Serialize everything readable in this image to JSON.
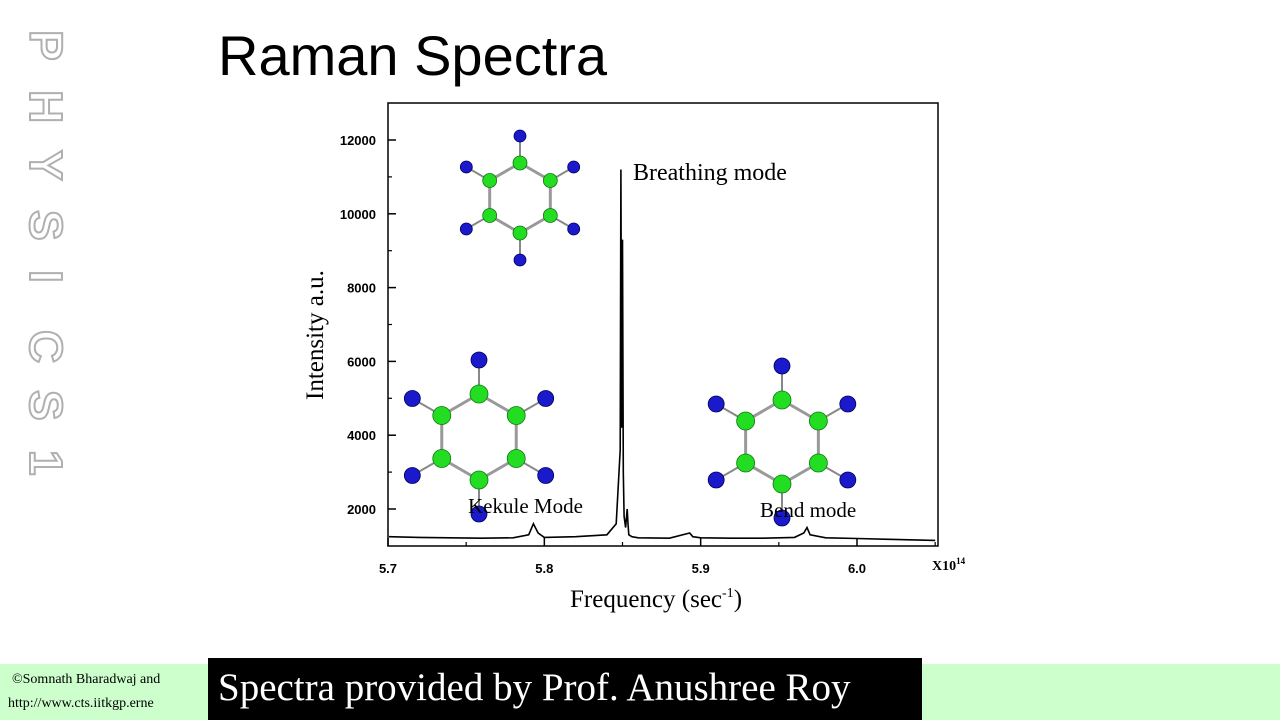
{
  "slide": {
    "title": "Raman Spectra",
    "watermark_letters": [
      "P",
      "H",
      "Y",
      "S",
      "I",
      "C",
      "S",
      "1"
    ],
    "footer_line1": "©Somnath Bharadwaj and",
    "footer_line2": "http://www.cts.iitkgp.erne",
    "caption": "Spectra provided by Prof. Anushree Roy"
  },
  "colors": {
    "footer_bg": "#ccffcc",
    "caption_bg": "#000000",
    "caption_text": "#ffffff",
    "carbon_atom": "#22dd22",
    "hydrogen_atom": "#1a1acc",
    "spectrum_line": "#000000"
  },
  "chart_data": {
    "type": "line",
    "title": "",
    "xlabel": "Frequency (sec",
    "xlabel_sup": "-1",
    "xlabel_tail": ")",
    "ylabel": "Intensity a.u.",
    "x_multiplier": "X10",
    "x_multiplier_sup": "14",
    "xlim": [
      5.7,
      6.05
    ],
    "ylim": [
      1000,
      12800
    ],
    "xticks": [
      "5.7",
      "5.8",
      "5.9",
      "6.0"
    ],
    "yticks": [
      "2000",
      "4000",
      "6000",
      "8000",
      "10000",
      "12000"
    ],
    "grid": false,
    "series": [
      {
        "x": [
          5.7,
          5.72,
          5.74,
          5.76,
          5.78,
          5.79,
          5.793,
          5.796,
          5.8,
          5.82,
          5.84,
          5.846,
          5.8485,
          5.849,
          5.8495,
          5.85,
          5.8505,
          5.851,
          5.852,
          5.853,
          5.8535,
          5.854,
          5.856,
          5.86,
          5.88,
          5.893,
          5.895,
          5.9,
          5.92,
          5.94,
          5.96,
          5.966,
          5.968,
          5.97,
          5.98,
          6.0,
          6.02,
          6.05
        ],
        "y": [
          1250,
          1230,
          1220,
          1210,
          1220,
          1300,
          1600,
          1350,
          1230,
          1250,
          1300,
          1600,
          3600,
          11200,
          4200,
          9300,
          3000,
          1800,
          1500,
          2000,
          1600,
          1300,
          1250,
          1220,
          1210,
          1350,
          1250,
          1220,
          1210,
          1210,
          1230,
          1350,
          1500,
          1300,
          1220,
          1200,
          1180,
          1150
        ]
      }
    ],
    "annotations": [
      "Breathing mode",
      "Kekule Mode",
      "Bend mode"
    ]
  }
}
